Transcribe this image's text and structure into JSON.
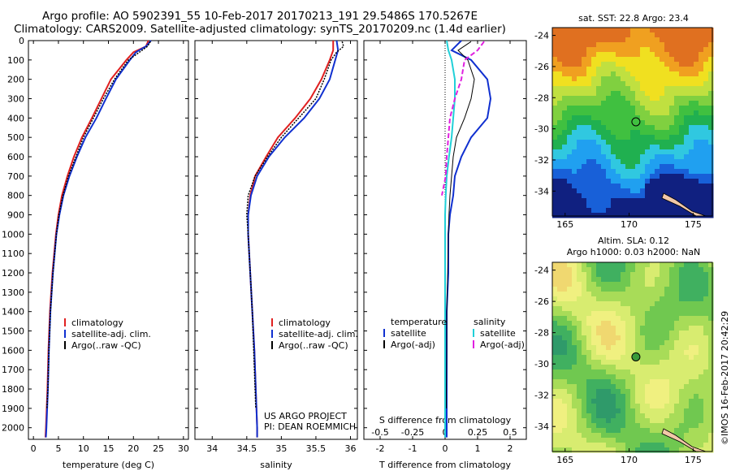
{
  "header": {
    "line1": "Argo profile: AO 5902391_55 10-Feb-2017 20170213_191 29.5486S 170.5267E",
    "line2": "Climatology: CARS2009. Satellite-adjusted climatology: synTS_20170209.nc (1.4d earlier)"
  },
  "colors": {
    "climatology": "#e02020",
    "satellite": "#1030d0",
    "argo": "#000000",
    "salinity_sat": "#20d0d8",
    "salinity_argo": "#e020e0"
  },
  "chart_data": [
    {
      "type": "line",
      "id": "temperature",
      "xlabel": "temperature (deg C)",
      "ylabel": "",
      "xlim": [
        -1,
        31
      ],
      "ylim": [
        2060,
        0
      ],
      "xticks": [
        "0",
        "5",
        "10",
        "15",
        "20",
        "25",
        "30"
      ],
      "xtick_values": [
        0,
        5,
        10,
        15,
        20,
        25,
        30
      ],
      "yticks": [
        "0",
        "100",
        "200",
        "300",
        "400",
        "500",
        "600",
        "700",
        "800",
        "900",
        "1000",
        "1100",
        "1200",
        "1300",
        "1400",
        "1500",
        "1600",
        "1700",
        "1800",
        "1900",
        "2000"
      ],
      "legend": [
        "climatology",
        "satellite-adj. clim.",
        "Argo(..raw -QC)"
      ],
      "series": [
        {
          "name": "climatology",
          "depth": [
            0,
            30,
            60,
            100,
            200,
            300,
            400,
            500,
            600,
            700,
            800,
            900,
            1000,
            1200,
            1400,
            1600,
            1800,
            2000,
            2050
          ],
          "values": [
            23,
            22.5,
            20,
            18.6,
            15.5,
            13.6,
            11.7,
            9.7,
            8.1,
            6.8,
            5.7,
            5.0,
            4.5,
            3.8,
            3.3,
            3.0,
            2.8,
            2.5,
            2.4
          ]
        },
        {
          "name": "satellite-adj. clim.",
          "depth": [
            0,
            30,
            60,
            100,
            200,
            300,
            400,
            500,
            600,
            700,
            800,
            900,
            1000,
            1200,
            1400,
            1600,
            1800,
            2000,
            2050
          ],
          "values": [
            23.5,
            22.5,
            20.5,
            19.3,
            16.5,
            14.5,
            12.6,
            10.4,
            8.7,
            7.2,
            6.0,
            5.2,
            4.6,
            3.9,
            3.4,
            3.1,
            2.9,
            2.6,
            2.5
          ]
        },
        {
          "name": "Argo(..raw -QC)",
          "depth": [
            5,
            30,
            60,
            100,
            200,
            300,
            400,
            500,
            600,
            700,
            800,
            900,
            1000,
            1200,
            1400,
            1600,
            1800,
            1900
          ],
          "values": [
            23.4,
            22.8,
            21.2,
            19.0,
            16.2,
            14.0,
            12.0,
            10.0,
            8.5,
            7.0,
            5.9,
            5.1,
            4.6,
            3.9,
            3.4,
            3.1,
            2.9,
            2.7
          ]
        }
      ]
    },
    {
      "type": "line",
      "id": "salinity",
      "xlabel": "salinity",
      "ylabel": "",
      "xlim": [
        33.75,
        36.1
      ],
      "ylim": [
        2060,
        0
      ],
      "xticks": [
        "34",
        "34.5",
        "35",
        "35.5",
        "36"
      ],
      "xtick_values": [
        34,
        34.5,
        35,
        35.5,
        36
      ],
      "legend": [
        "climatology",
        "satellite-adj. clim.",
        "Argo(..raw -QC)"
      ],
      "series": [
        {
          "name": "climatology",
          "depth": [
            0,
            50,
            100,
            200,
            300,
            400,
            500,
            600,
            700,
            800,
            900,
            1000,
            1200,
            1400,
            1600,
            1800,
            2000,
            2050
          ],
          "values": [
            35.75,
            35.75,
            35.7,
            35.58,
            35.42,
            35.2,
            34.95,
            34.78,
            34.62,
            34.55,
            34.52,
            34.52,
            34.55,
            34.58,
            34.61,
            34.63,
            34.65,
            34.65
          ]
        },
        {
          "name": "satellite-adj. clim.",
          "depth": [
            0,
            50,
            100,
            200,
            300,
            400,
            500,
            600,
            700,
            800,
            900,
            1000,
            1200,
            1400,
            1600,
            1800,
            2000,
            2050
          ],
          "values": [
            35.8,
            35.82,
            35.78,
            35.7,
            35.55,
            35.33,
            35.05,
            34.82,
            34.65,
            34.56,
            34.52,
            34.52,
            34.55,
            34.58,
            34.61,
            34.63,
            34.65,
            34.65
          ]
        },
        {
          "name": "Argo(..raw -QC)",
          "depth": [
            5,
            30,
            60,
            100,
            200,
            300,
            400,
            500,
            600,
            700,
            800,
            900,
            1000,
            1200,
            1400,
            1600,
            1800,
            1900
          ],
          "values": [
            35.88,
            35.9,
            35.8,
            35.72,
            35.62,
            35.5,
            35.25,
            35.0,
            34.8,
            34.62,
            34.52,
            34.5,
            34.52,
            34.55,
            34.58,
            34.6,
            34.62,
            34.63
          ]
        }
      ]
    },
    {
      "type": "line",
      "id": "differences",
      "xlabel": "T difference from climatology",
      "xlabel_top": "S difference from climatology",
      "xlim": [
        -2.5,
        2.5
      ],
      "ylim": [
        2060,
        0
      ],
      "xticks": [
        "-2",
        "-1",
        "0",
        "1",
        "2"
      ],
      "xtick_values": [
        -2,
        -1,
        0,
        1,
        2
      ],
      "sticks": [
        "-0.5",
        "-0.25",
        "0",
        "0.25",
        "0.5"
      ],
      "stick_values": [
        -2,
        -1,
        0,
        1,
        2
      ],
      "legend_headers": [
        "temperature",
        "salinity"
      ],
      "legend": [
        "satellite",
        "Argo(-adj)",
        "satellite",
        "Argo(-adj)"
      ],
      "series": [
        {
          "name": "satellite",
          "kind": "temperature",
          "depth": [
            0,
            50,
            100,
            200,
            300,
            400,
            500,
            600,
            700,
            800,
            900,
            1000,
            1200,
            1400,
            1600,
            1800,
            2000,
            2050
          ],
          "values": [
            0.5,
            0.2,
            0.8,
            1.3,
            1.4,
            1.3,
            0.8,
            0.5,
            0.3,
            0.25,
            0.15,
            0.1,
            0.1,
            0.05,
            0.05,
            0.05,
            0.05,
            0.05
          ]
        },
        {
          "name": "Argo(-adj)",
          "kind": "temperature",
          "depth": [
            5,
            50,
            100,
            200,
            300,
            400,
            500,
            600,
            700,
            800,
            900,
            1000,
            1200,
            1400,
            1600,
            1800,
            1900
          ],
          "values": [
            0.8,
            0.4,
            0.7,
            0.9,
            0.8,
            0.6,
            0.35,
            0.25,
            0.2,
            0.15,
            0.12,
            0.1,
            0.08,
            0.05,
            0.05,
            0.04,
            0.04
          ]
        },
        {
          "name": "satellite",
          "kind": "salinity",
          "depth": [
            0,
            50,
            100,
            200,
            300,
            400,
            500,
            600,
            700,
            800,
            900,
            1000,
            1200,
            1400,
            1600,
            1800,
            2000,
            2050
          ],
          "values": [
            0.05,
            0.1,
            0.2,
            0.3,
            0.3,
            0.25,
            0.2,
            0.12,
            0.05,
            0.02,
            0.0,
            0.0,
            0.0,
            0.0,
            0.0,
            0.0,
            0.0,
            0.0
          ]
        },
        {
          "name": "Argo(-adj)",
          "kind": "salinity",
          "depth": [
            5,
            50,
            100,
            200,
            300,
            400,
            500,
            600,
            700,
            800
          ],
          "values": [
            1.2,
            1.0,
            0.6,
            0.5,
            0.3,
            0.15,
            0.1,
            0.05,
            0.02,
            -0.1
          ]
        }
      ]
    }
  ],
  "maps": {
    "sst": {
      "title": "sat. SST: 22.8 Argo: 23.4",
      "xticks": [
        "165",
        "170",
        "175"
      ],
      "xtick_values": [
        165,
        170,
        175
      ],
      "yticks": [
        "-24",
        "-26",
        "-28",
        "-30",
        "-32",
        "-34"
      ],
      "ytick_values": [
        -24,
        -26,
        -28,
        -30,
        -32,
        -34
      ],
      "xlim": [
        164,
        176.5
      ],
      "ylim": [
        -23.5,
        -35.6
      ],
      "float": [
        170.53,
        -29.55
      ]
    },
    "sla": {
      "title1": "Altim. SLA: 0.12",
      "title2": "Argo h1000: 0.03 h2000: NaN",
      "xticks": [
        "165",
        "170",
        "175"
      ],
      "xtick_values": [
        165,
        170,
        175
      ],
      "yticks": [
        "-24",
        "-26",
        "-28",
        "-30",
        "-32",
        "-34"
      ],
      "ytick_values": [
        -24,
        -26,
        -28,
        -30,
        -32,
        -34
      ],
      "xlim": [
        164,
        176.5
      ],
      "ylim": [
        -23.5,
        -35.6
      ],
      "float": [
        170.53,
        -29.55
      ]
    }
  },
  "footer": {
    "project1": "US ARGO PROJECT",
    "project2": "PI: DEAN ROEMMICH",
    "credit": "©IMOS 16-Feb-2017 20:42:29"
  }
}
